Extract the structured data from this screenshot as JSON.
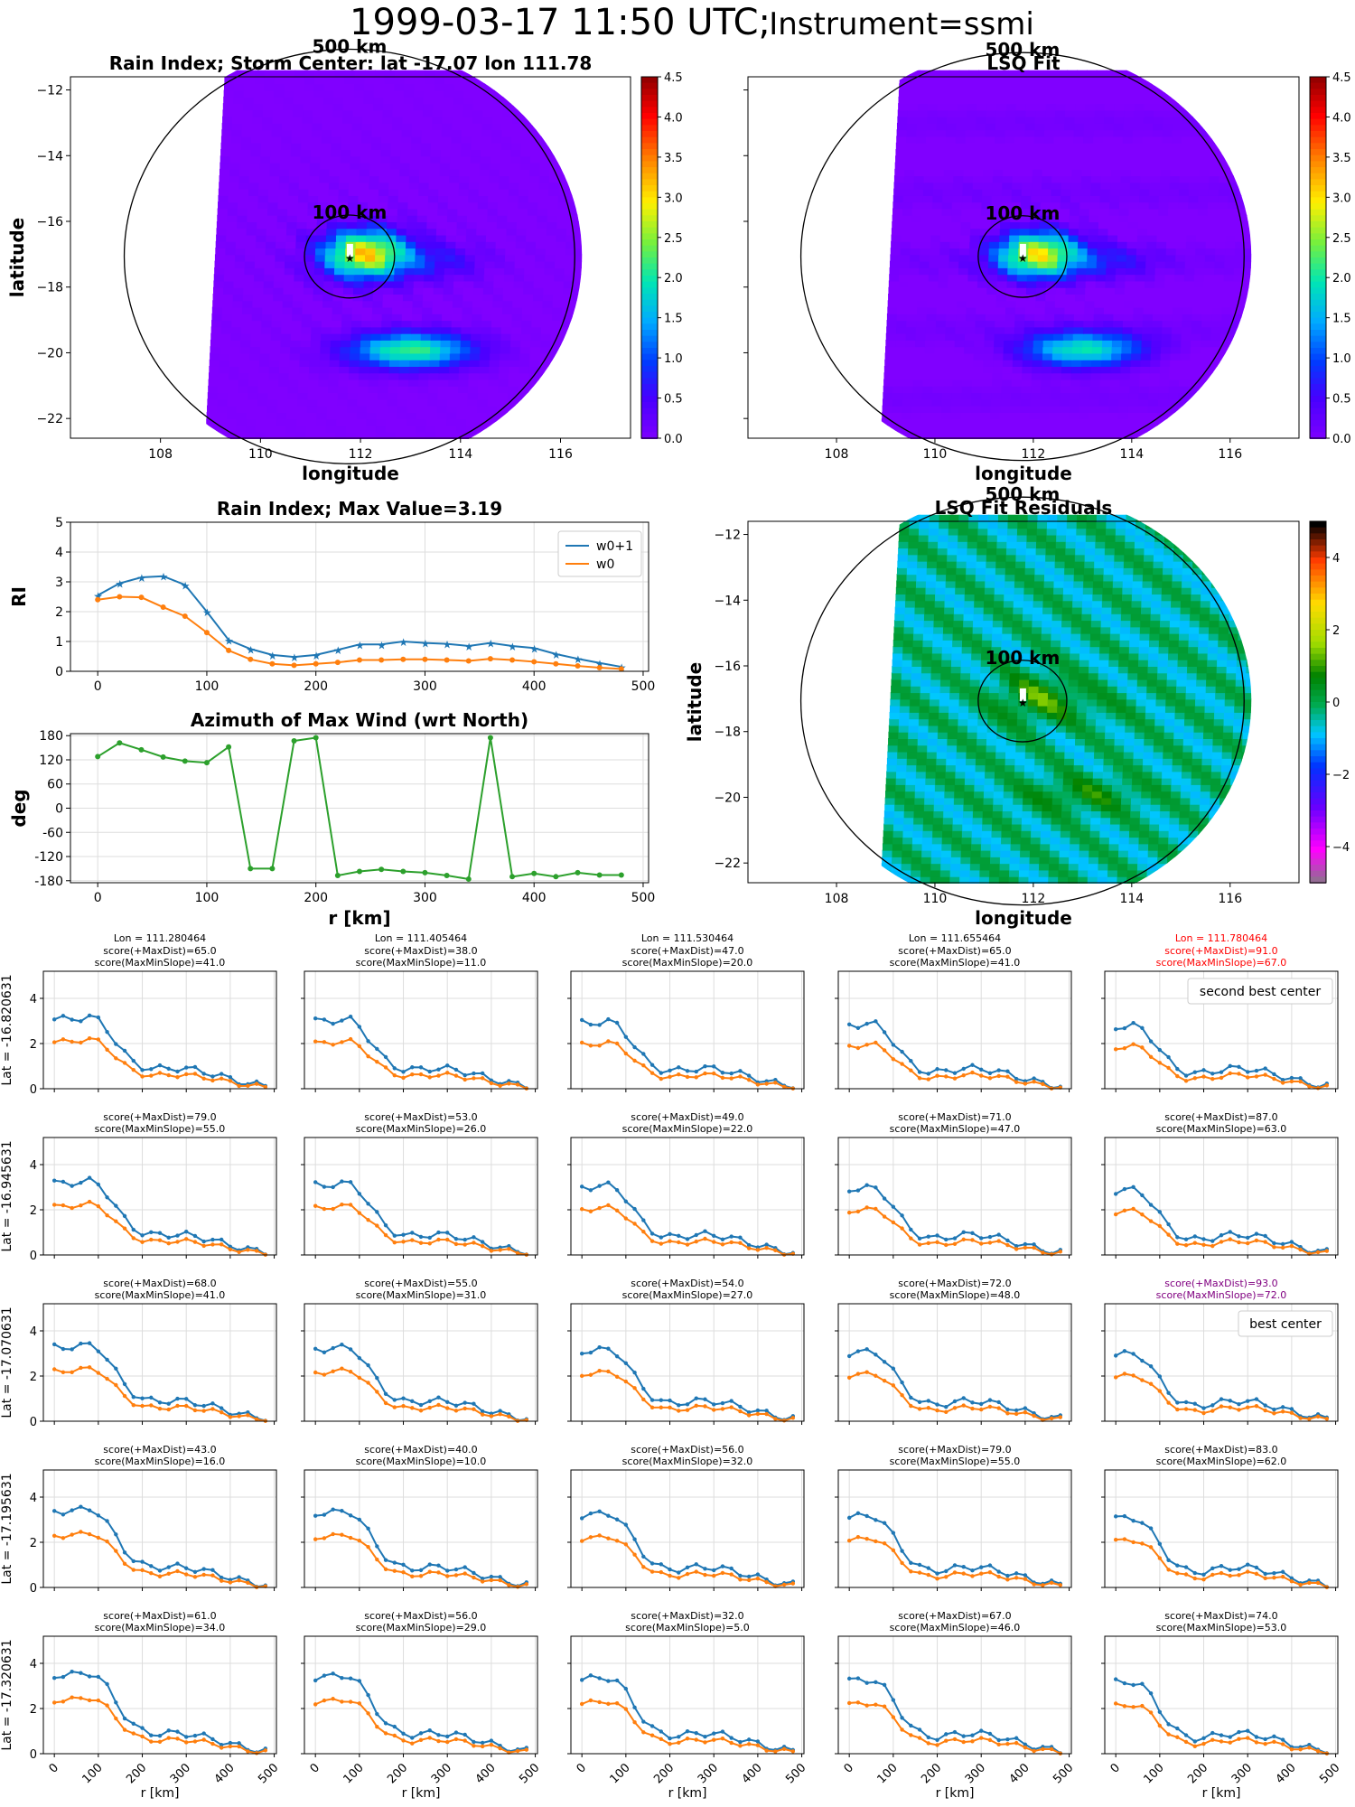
{
  "figure": {
    "title_main": "1999-03-17 11:50 UTC;",
    "title_instr": "Instrument=ssmi"
  },
  "maps": {
    "rain_title": "Rain Index; Storm Center: lat -17.07 lon 111.78",
    "lsq_title": "LSQ Fit",
    "resid_title": "LSQ Fit Residuals",
    "xlabel": "longitude",
    "ylabel": "latitude",
    "ring_outer_label": "500 km",
    "ring_inner_label": "100 km",
    "xticks": [
      "108",
      "110",
      "112",
      "114",
      "116"
    ],
    "yticks": [
      "−12",
      "−14",
      "−16",
      "−18",
      "−20",
      "−22"
    ],
    "colorbar_ticks": [
      "0.0",
      "0.5",
      "1.0",
      "1.5",
      "2.0",
      "2.5",
      "3.0",
      "3.5",
      "4.0",
      "4.5"
    ],
    "resid_colorbar_ticks": [
      "4",
      "2",
      "0",
      "−2",
      "−4"
    ],
    "storm_center": {
      "lat": -17.07,
      "lon": 111.78
    }
  },
  "chart_data": [
    {
      "type": "line",
      "title": "Rain Index; Max Value=3.19",
      "ylabel": "RI",
      "xlabel": "",
      "x": [
        0,
        20,
        40,
        60,
        80,
        100,
        120,
        140,
        160,
        180,
        200,
        220,
        240,
        260,
        280,
        300,
        320,
        340,
        360,
        380,
        400,
        420,
        440,
        460,
        480
      ],
      "series": [
        {
          "name": "w0+1",
          "color": "#1f77b4",
          "marker": "star",
          "values": [
            2.55,
            2.95,
            3.15,
            3.19,
            2.9,
            2.0,
            1.05,
            0.75,
            0.55,
            0.48,
            0.55,
            0.72,
            0.9,
            0.9,
            1.0,
            0.95,
            0.92,
            0.85,
            0.95,
            0.85,
            0.78,
            0.58,
            0.42,
            0.28,
            0.15
          ]
        },
        {
          "name": "w0",
          "color": "#ff7f0e",
          "marker": "dot",
          "values": [
            2.4,
            2.5,
            2.48,
            2.15,
            1.85,
            1.3,
            0.7,
            0.4,
            0.25,
            0.2,
            0.25,
            0.3,
            0.38,
            0.38,
            0.4,
            0.4,
            0.38,
            0.35,
            0.42,
            0.38,
            0.32,
            0.25,
            0.18,
            0.12,
            0.08
          ]
        }
      ],
      "xlim": [
        -25,
        505
      ],
      "ylim": [
        0,
        5
      ],
      "yticks": [
        0,
        1,
        2,
        3,
        4,
        5
      ],
      "xticks": [
        0,
        100,
        200,
        300,
        400,
        500
      ],
      "grid": true,
      "legend": "top-right"
    },
    {
      "type": "line",
      "title": "Azimuth of Max Wind (wrt North)",
      "ylabel": "deg",
      "xlabel": "r [km]",
      "x": [
        0,
        20,
        40,
        60,
        80,
        100,
        120,
        140,
        160,
        180,
        200,
        220,
        240,
        260,
        280,
        300,
        320,
        340,
        360,
        380,
        400,
        420,
        440,
        460,
        480
      ],
      "series": [
        {
          "color": "#2ca02c",
          "values": [
            128,
            162,
            145,
            127,
            117,
            113,
            152,
            -150,
            -150,
            167,
            175,
            -167,
            -157,
            -152,
            -157,
            -160,
            -167,
            -176,
            175,
            -170,
            -162,
            -170,
            -160,
            -166,
            -166
          ]
        }
      ],
      "xlim": [
        -25,
        505
      ],
      "ylim": [
        -185,
        185
      ],
      "yticks": [
        -180,
        -120,
        -60,
        0,
        60,
        120,
        180
      ],
      "xticks": [
        0,
        100,
        200,
        300,
        400,
        500
      ],
      "grid": true
    }
  ],
  "grid": {
    "xlabel": "r [km]",
    "xticks": [
      "0",
      "100",
      "200",
      "300",
      "400",
      "500"
    ],
    "yticks": [
      "0",
      "2",
      "4"
    ],
    "score_dist_label": "score(+MaxDist)",
    "score_slope_label": "score(MaxMinSlope)",
    "lon_prefix": "Lon = ",
    "lat_prefix": "Lat = ",
    "lons": [
      "111.280464",
      "111.405464",
      "111.530464",
      "111.655464",
      "111.780464"
    ],
    "lats": [
      "-16.820631",
      "-16.945631",
      "-17.070631",
      "-17.195631",
      "-17.320631"
    ],
    "scores": [
      [
        [
          65.0,
          41.0
        ],
        [
          38.0,
          11.0
        ],
        [
          47.0,
          20.0
        ],
        [
          65.0,
          41.0
        ],
        [
          91.0,
          67.0
        ]
      ],
      [
        [
          79.0,
          55.0
        ],
        [
          53.0,
          26.0
        ],
        [
          49.0,
          22.0
        ],
        [
          71.0,
          47.0
        ],
        [
          87.0,
          63.0
        ]
      ],
      [
        [
          68.0,
          41.0
        ],
        [
          55.0,
          31.0
        ],
        [
          54.0,
          27.0
        ],
        [
          72.0,
          48.0
        ],
        [
          93.0,
          72.0
        ]
      ],
      [
        [
          43.0,
          16.0
        ],
        [
          40.0,
          10.0
        ],
        [
          56.0,
          32.0
        ],
        [
          79.0,
          55.0
        ],
        [
          83.0,
          62.0
        ]
      ],
      [
        [
          61.0,
          34.0
        ],
        [
          56.0,
          29.0
        ],
        [
          32.0,
          5.0
        ],
        [
          67.0,
          46.0
        ],
        [
          74.0,
          53.0
        ]
      ]
    ],
    "highlights": [
      {
        "row": 0,
        "col": 4,
        "color": "#ff0000",
        "legend": "second best center"
      },
      {
        "row": 2,
        "col": 4,
        "color": "#800080",
        "legend": "best center"
      }
    ],
    "series_colors": {
      "w0+1": "#1f77b4",
      "w0": "#ff7f0e"
    }
  }
}
